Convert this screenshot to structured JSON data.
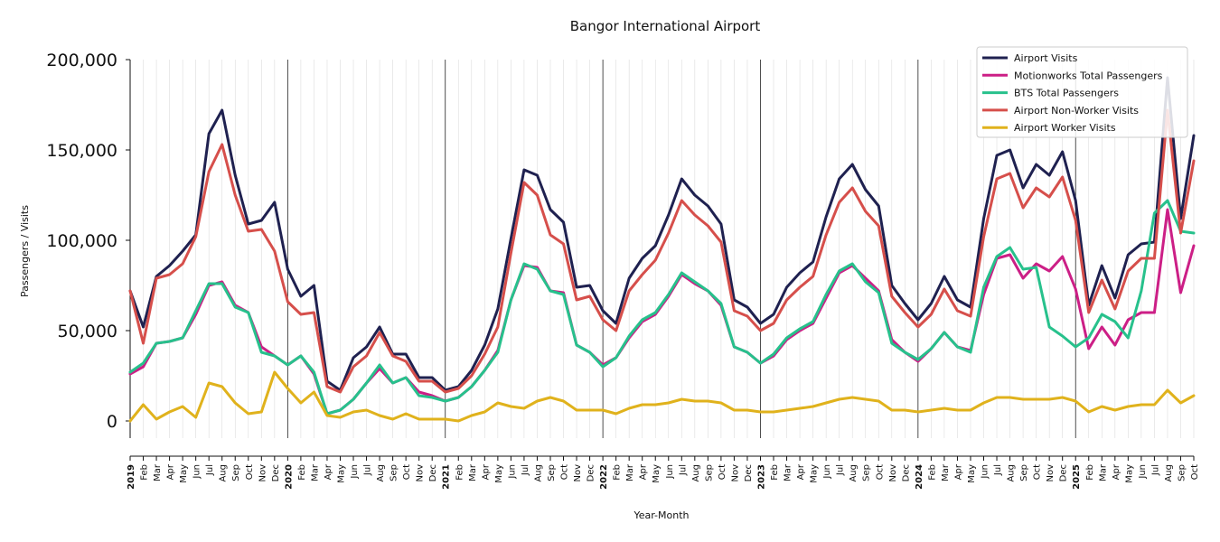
{
  "chart_data": {
    "type": "line",
    "title": "Bangor International Airport",
    "xlabel": "Year-Month",
    "ylabel": "Passengers / Visits",
    "ylim": [
      -10000,
      200000
    ],
    "yticks": [
      0,
      50000,
      100000,
      150000,
      200000
    ],
    "ytick_labels": [
      "0",
      "50,000",
      "100,000",
      "150,000",
      "200,000"
    ],
    "grid": "vertical monthly gridlines, darker line at each January",
    "legend_position": "top-right",
    "x_labels": [
      "2019",
      "Feb",
      "Mar",
      "Apr",
      "May",
      "Jun",
      "Jul",
      "Aug",
      "Sep",
      "Oct",
      "Nov",
      "Dec",
      "2020",
      "Feb",
      "Mar",
      "Apr",
      "May",
      "Jun",
      "Jul",
      "Aug",
      "Sep",
      "Oct",
      "Nov",
      "Dec",
      "2021",
      "Feb",
      "Mar",
      "Apr",
      "May",
      "Jun",
      "Jul",
      "Aug",
      "Sep",
      "Oct",
      "Nov",
      "Dec",
      "2022",
      "Feb",
      "Mar",
      "Apr",
      "May",
      "Jun",
      "Jul",
      "Aug",
      "Sep",
      "Oct",
      "Nov",
      "Dec",
      "2023",
      "Feb",
      "Mar",
      "Apr",
      "May",
      "Jun",
      "Jul",
      "Aug",
      "Sep",
      "Oct",
      "Nov",
      "Dec",
      "2024",
      "Feb",
      "Mar",
      "Apr",
      "May",
      "Jun",
      "Jul",
      "Aug",
      "Sep",
      "Oct",
      "Nov",
      "Dec",
      "2025",
      "Feb",
      "Mar",
      "Apr",
      "May",
      "Jun",
      "Jul",
      "Aug",
      "Sep",
      "Oct"
    ],
    "series": [
      {
        "name": "Airport Visits",
        "color": "#1f2150",
        "values": [
          72000,
          52000,
          80000,
          86000,
          94000,
          103000,
          159000,
          172000,
          136000,
          109000,
          111000,
          121000,
          84000,
          69000,
          75000,
          22000,
          17000,
          35000,
          41000,
          52000,
          37000,
          37000,
          24000,
          24000,
          17000,
          19000,
          28000,
          42000,
          62000,
          101000,
          139000,
          136000,
          117000,
          110000,
          74000,
          75000,
          61000,
          54000,
          79000,
          90000,
          97000,
          114000,
          134000,
          125000,
          119000,
          109000,
          67000,
          63000,
          54000,
          59000,
          74000,
          82000,
          88000,
          113000,
          134000,
          142000,
          128000,
          119000,
          75000,
          65000,
          56000,
          65000,
          80000,
          67000,
          63000,
          112000,
          147000,
          150000,
          129000,
          142000,
          136000,
          149000,
          122000,
          64000,
          86000,
          68000,
          92000,
          98000,
          99000,
          190000,
          112000,
          158000
        ]
      },
      {
        "name": "Motionworks Total Passengers",
        "color": "#cc1f86",
        "values": [
          26000,
          30000,
          43000,
          44000,
          46000,
          59000,
          75000,
          77000,
          64000,
          60000,
          41000,
          36000,
          31000,
          36000,
          26000,
          4000,
          6000,
          12000,
          21000,
          29000,
          21000,
          24000,
          16000,
          14000,
          11000,
          13000,
          19000,
          28000,
          39000,
          67000,
          86000,
          85000,
          72000,
          71000,
          42000,
          38000,
          31000,
          35000,
          46000,
          55000,
          59000,
          69000,
          81000,
          76000,
          72000,
          64000,
          41000,
          38000,
          32000,
          36000,
          45000,
          50000,
          54000,
          68000,
          82000,
          86000,
          79000,
          72000,
          45000,
          38000,
          33000,
          40000,
          49000,
          41000,
          39000,
          70000,
          90000,
          92000,
          79000,
          87000,
          83000,
          91000,
          73000,
          40000,
          52000,
          42000,
          56000,
          60000,
          60000,
          117000,
          71000,
          97000
        ]
      },
      {
        "name": "BTS Total Passengers",
        "color": "#27c18c",
        "values": [
          27000,
          32000,
          43000,
          44000,
          46000,
          61000,
          76000,
          76000,
          63000,
          60000,
          38000,
          36000,
          31000,
          36000,
          27000,
          4000,
          6000,
          12000,
          21000,
          31000,
          21000,
          24000,
          14000,
          13000,
          11000,
          13000,
          19000,
          28000,
          38000,
          67000,
          87000,
          84000,
          72000,
          70000,
          42000,
          38000,
          30000,
          35000,
          47000,
          56000,
          60000,
          70000,
          82000,
          77000,
          72000,
          65000,
          41000,
          38000,
          32000,
          37000,
          46000,
          51000,
          55000,
          70000,
          83000,
          87000,
          77000,
          71000,
          43000,
          38000,
          34000,
          40000,
          49000,
          41000,
          38000,
          74000,
          91000,
          96000,
          84000,
          85000,
          52000,
          47000,
          41000,
          46000,
          59000,
          55000,
          46000,
          72000,
          115000,
          122000,
          105000,
          104000
        ]
      },
      {
        "name": "Airport Non-Worker Visits",
        "color": "#d64f4b",
        "values": [
          72000,
          43000,
          79000,
          81000,
          87000,
          102000,
          138000,
          153000,
          125000,
          105000,
          106000,
          94000,
          66000,
          59000,
          60000,
          19000,
          16000,
          30000,
          36000,
          49000,
          36000,
          33000,
          22000,
          22000,
          16000,
          18000,
          25000,
          37000,
          52000,
          93000,
          132000,
          125000,
          103000,
          98000,
          67000,
          69000,
          56000,
          50000,
          72000,
          81000,
          89000,
          104000,
          122000,
          114000,
          108000,
          99000,
          61000,
          58000,
          50000,
          54000,
          67000,
          74000,
          80000,
          103000,
          121000,
          129000,
          116000,
          108000,
          69000,
          60000,
          52000,
          59000,
          73000,
          61000,
          58000,
          102000,
          134000,
          137000,
          118000,
          129000,
          124000,
          135000,
          111000,
          60000,
          78000,
          62000,
          83000,
          90000,
          90000,
          172000,
          104000,
          144000
        ]
      },
      {
        "name": "Airport Worker Visits",
        "color": "#e0b21c",
        "values": [
          0,
          9000,
          1000,
          5000,
          8000,
          2000,
          21000,
          19000,
          10000,
          4000,
          5000,
          27000,
          18000,
          10000,
          16000,
          3000,
          2000,
          5000,
          6000,
          3000,
          1000,
          4000,
          1000,
          1000,
          1000,
          0,
          3000,
          5000,
          10000,
          8000,
          7000,
          11000,
          13000,
          11000,
          6000,
          6000,
          6000,
          4000,
          7000,
          9000,
          9000,
          10000,
          12000,
          11000,
          11000,
          10000,
          6000,
          6000,
          5000,
          5000,
          6000,
          7000,
          8000,
          10000,
          12000,
          13000,
          12000,
          11000,
          6000,
          6000,
          5000,
          6000,
          7000,
          6000,
          6000,
          10000,
          13000,
          13000,
          12000,
          12000,
          12000,
          13000,
          11000,
          5000,
          8000,
          6000,
          8000,
          9000,
          9000,
          17000,
          10000,
          14000
        ]
      }
    ]
  }
}
